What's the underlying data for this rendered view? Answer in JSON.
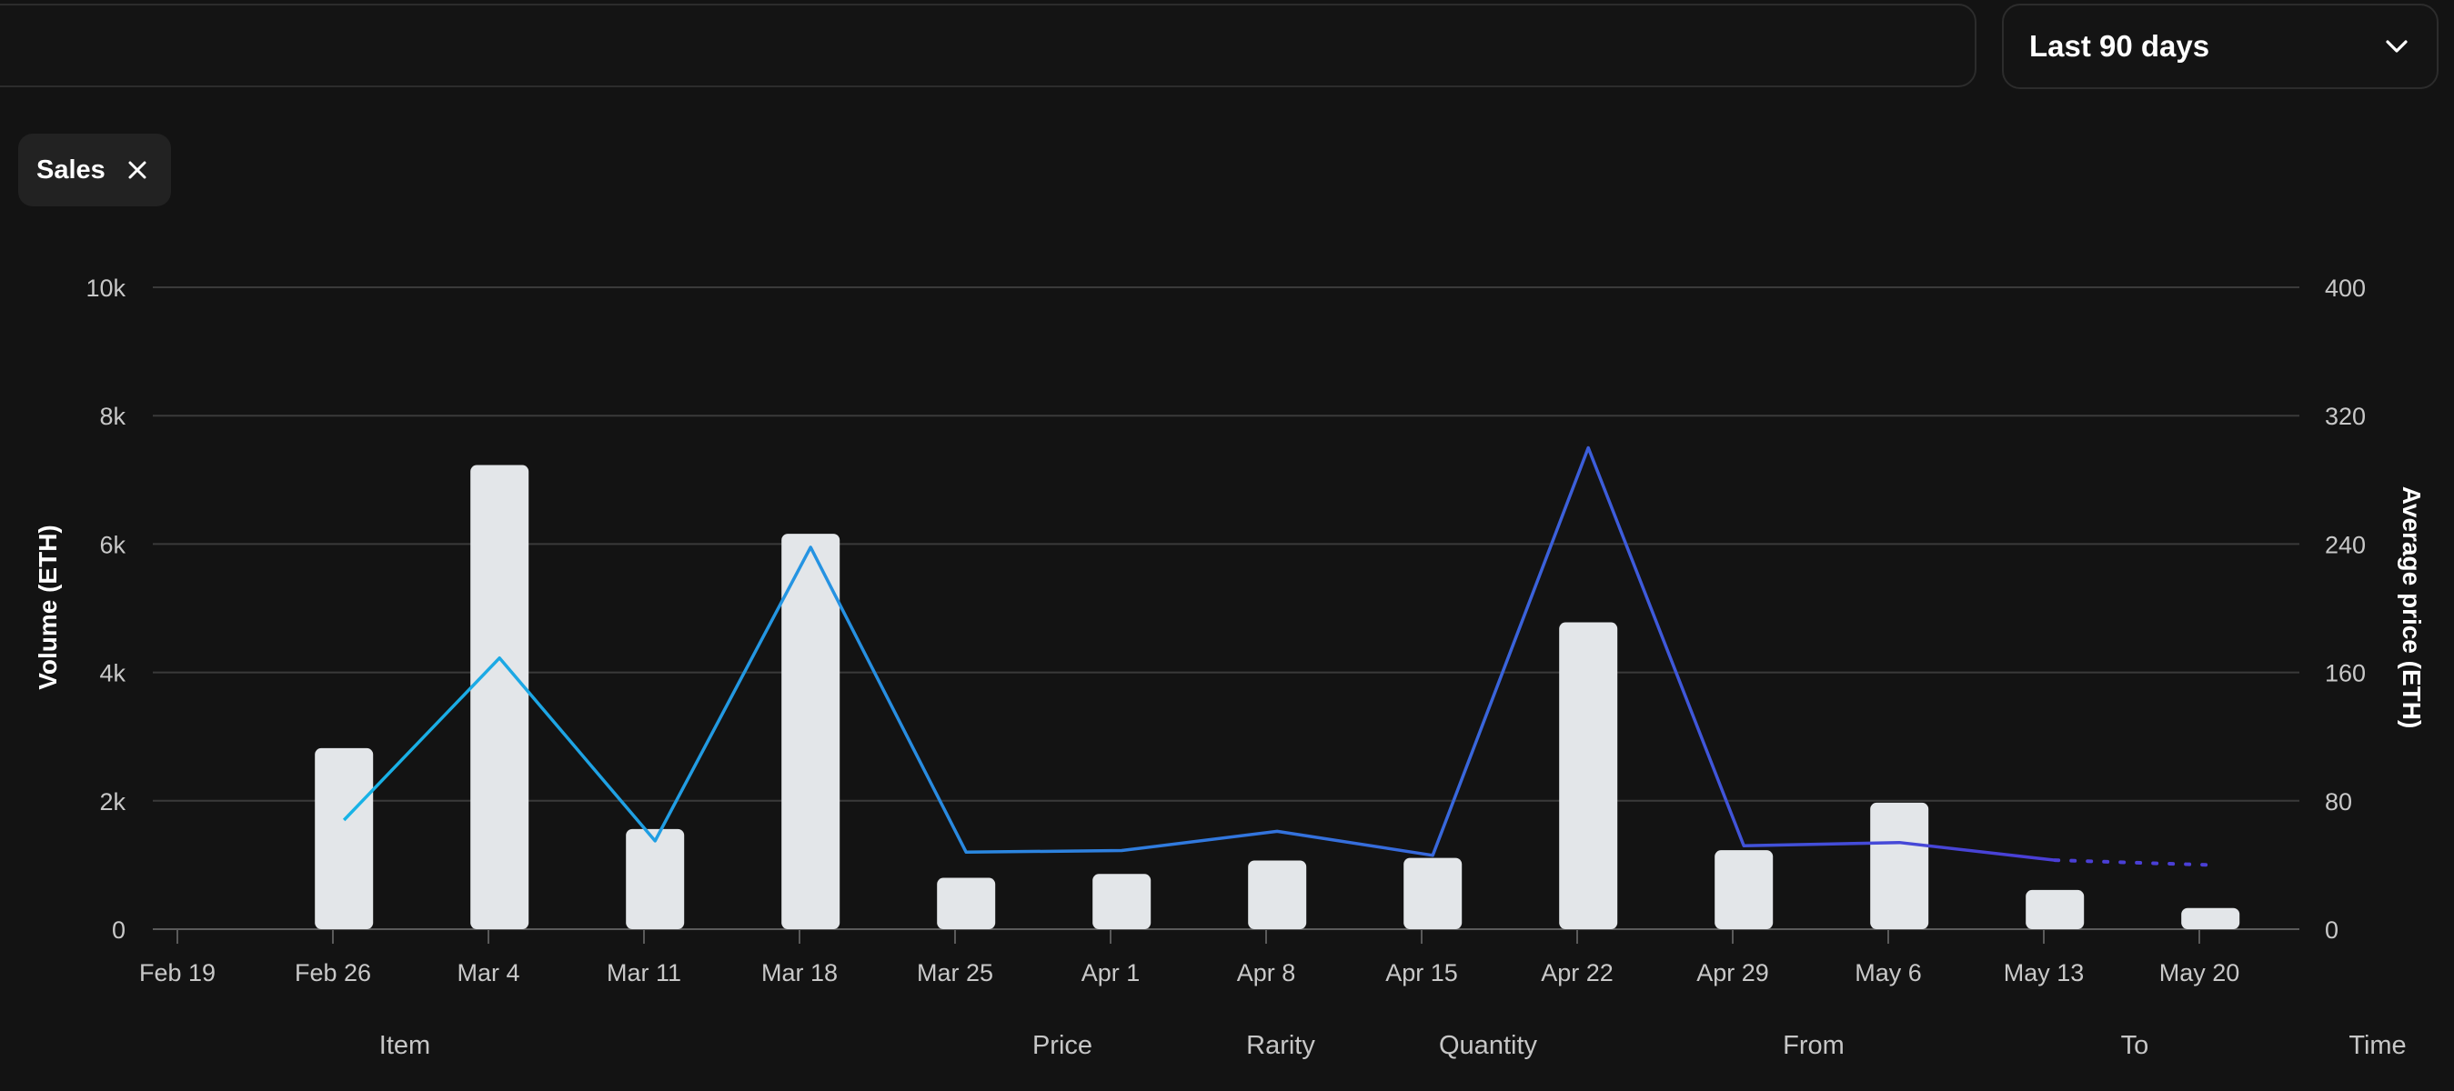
{
  "time_range": {
    "selected": "Last 90 days"
  },
  "filters": [
    {
      "label": "Sales"
    }
  ],
  "table_headers": [
    "Item",
    "Price",
    "Rarity",
    "Quantity",
    "From",
    "To",
    "Time"
  ],
  "colors": {
    "bar": "#e3e6e9",
    "line_start": "#17b4e6",
    "line_end": "#4a3fd6",
    "grid": "#3a3a3a",
    "background": "#131313"
  },
  "chart_data": {
    "type": "bar",
    "categories": [
      "Feb 19",
      "Feb 26",
      "Mar 4",
      "Mar 11",
      "Mar 18",
      "Mar 25",
      "Apr 1",
      "Apr 8",
      "Apr 15",
      "Apr 22",
      "Apr 29",
      "May 6",
      "May 13",
      "May 20"
    ],
    "series": [
      {
        "type": "bar",
        "axis": "left",
        "values": [
          0,
          2820,
          7230,
          1560,
          6160,
          800,
          860,
          1070,
          1110,
          4780,
          1230,
          1970,
          610,
          330
        ]
      },
      {
        "type": "line",
        "axis": "right",
        "values": [
          null,
          68,
          169,
          55,
          238,
          48,
          49,
          61,
          46,
          300,
          52,
          54,
          43,
          40
        ],
        "dashed_from_index": 12
      }
    ],
    "left_axis": {
      "label": "Volume (ETH)",
      "ticks": [
        "0",
        "2k",
        "4k",
        "6k",
        "8k",
        "10k"
      ],
      "range": [
        0,
        10000
      ]
    },
    "right_axis": {
      "label": "Average price (ETH)",
      "ticks": [
        "0",
        "80",
        "160",
        "240",
        "320",
        "400"
      ],
      "range": [
        0,
        400
      ]
    },
    "grid": true
  }
}
